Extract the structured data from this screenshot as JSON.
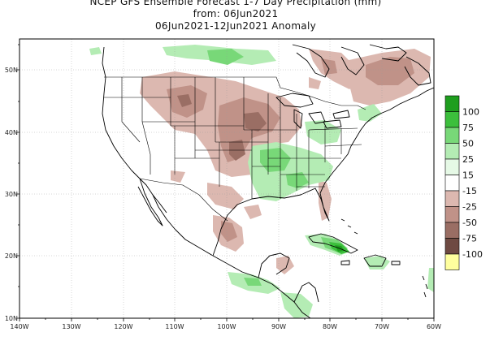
{
  "title": {
    "line1": "NCEP GFS Ensemble Forecast 1-7 Day Precipitation (mm)",
    "line2": "from: 06Jun2021",
    "line3": "06Jun2021-12Jun2021 Anomaly"
  },
  "axes": {
    "lon_labels": [
      "140W",
      "130W",
      "120W",
      "110W",
      "100W",
      "90W",
      "80W",
      "70W",
      "60W"
    ],
    "lat_labels": [
      "10N",
      "20N",
      "30N",
      "40N",
      "50N"
    ]
  },
  "legend": {
    "labels": [
      "100",
      "75",
      "50",
      "25",
      "15",
      "-15",
      "-25",
      "-50",
      "-75",
      "-100"
    ],
    "colors": [
      "#1e9e1e",
      "#3cbf3c",
      "#78d878",
      "#b4ecb4",
      "#e6f9e6",
      "#ffffff",
      "#dcb8b0",
      "#c09288",
      "#9a6e64",
      "#6e4a42",
      "#ffff9e"
    ]
  },
  "colors": {
    "green_light": "#b4ecb4",
    "green_mid": "#78d878",
    "green_dark": "#3cbf3c",
    "green_darkest": "#1e9e1e",
    "brown_light": "#dcb8b0",
    "brown_mid": "#c09288",
    "brown_dark": "#9a6e64"
  }
}
